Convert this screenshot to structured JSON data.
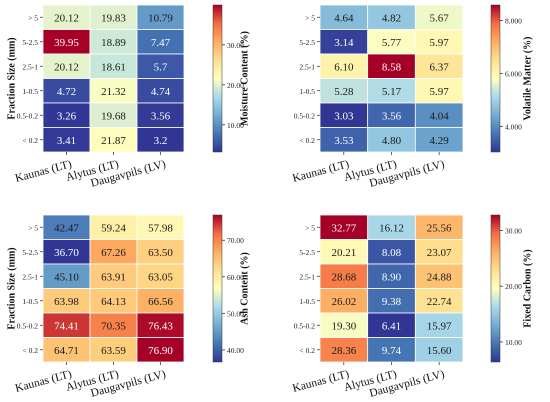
{
  "chart_data": [
    {
      "type": "heatmap",
      "title": "",
      "ylabel": "Fraction Size (mm)",
      "colorbar_label": "Moisture Content (%)",
      "colormap": "RdYlBu_r",
      "columns": [
        "Kaunas (LT)",
        "Alytus (LT)",
        "Daugavpils (LV)"
      ],
      "rows": [
        "> 5",
        "5-2.5",
        "2.5-1",
        "1-0.5",
        "0.5-0.2",
        "< 0.2"
      ],
      "values": [
        [
          20.12,
          19.83,
          10.79
        ],
        [
          39.95,
          18.89,
          7.47
        ],
        [
          20.12,
          18.61,
          5.7
        ],
        [
          4.72,
          21.32,
          4.74
        ],
        [
          3.26,
          19.68,
          3.56
        ],
        [
          3.41,
          21.87,
          3.2
        ]
      ],
      "cell_labels": [
        [
          "20.12",
          "19.83",
          "10.79"
        ],
        [
          "39.95",
          "18.89",
          "7.47"
        ],
        [
          "20.12",
          "18.61",
          "5.7"
        ],
        [
          "4.72",
          "21.32",
          "4.74"
        ],
        [
          "3.26",
          "19.68",
          "3.56"
        ],
        [
          "3.41",
          "21.87",
          "3.2"
        ]
      ],
      "vmin": 3.2,
      "vmax": 39.95,
      "colorbar_ticks": [
        "10.00",
        "20.00",
        "30.00"
      ]
    },
    {
      "type": "heatmap",
      "title": "",
      "ylabel": "",
      "colorbar_label": "Volatile Matter (%)",
      "colormap": "RdYlBu_r",
      "columns": [
        "Kaunas (LT)",
        "Alytus (LT)",
        "Daugavpils (LV)"
      ],
      "rows": [
        "> 5",
        "5-2.5",
        "2.5-1",
        "1-0.5",
        "0.5-0.2",
        "< 0.2"
      ],
      "values": [
        [
          4.64,
          4.82,
          5.67
        ],
        [
          3.14,
          5.77,
          5.97
        ],
        [
          6.1,
          8.58,
          6.37
        ],
        [
          5.28,
          5.17,
          5.97
        ],
        [
          3.03,
          3.56,
          4.04
        ],
        [
          3.53,
          4.8,
          4.29
        ]
      ],
      "cell_labels": [
        [
          "4.64",
          "4.82",
          "5.67"
        ],
        [
          "3.14",
          "5.77",
          "5.97"
        ],
        [
          "6.10",
          "8.58",
          "6.37"
        ],
        [
          "5.28",
          "5.17",
          "5.97"
        ],
        [
          "3.03",
          "3.56",
          "4.04"
        ],
        [
          "3.53",
          "4.80",
          "4.29"
        ]
      ],
      "vmin": 3.03,
      "vmax": 8.58,
      "colorbar_ticks": [
        "4.000",
        "6.000",
        "8.000"
      ]
    },
    {
      "type": "heatmap",
      "title": "",
      "ylabel": "Fraction Size (mm)",
      "colorbar_label": "Ash Content (%)",
      "colormap": "RdYlBu_r",
      "columns": [
        "Kaunas (LT)",
        "Alytus (LT)",
        "Daugavpils (LV)"
      ],
      "rows": [
        "> 5",
        "5-2.5",
        "2.5-1",
        "1-0.5",
        "0.5-0.2",
        "< 0.2"
      ],
      "values": [
        [
          42.47,
          59.24,
          57.98
        ],
        [
          36.7,
          67.26,
          63.5
        ],
        [
          45.1,
          63.91,
          63.05
        ],
        [
          63.98,
          64.13,
          66.56
        ],
        [
          74.41,
          70.35,
          76.43
        ],
        [
          64.71,
          63.59,
          76.9
        ]
      ],
      "cell_labels": [
        [
          "42.47",
          "59.24",
          "57.98"
        ],
        [
          "36.70",
          "67.26",
          "63.50"
        ],
        [
          "45.10",
          "63.91",
          "63.05"
        ],
        [
          "63.98",
          "64.13",
          "66.56"
        ],
        [
          "74.41",
          "70.35",
          "76.43"
        ],
        [
          "64.71",
          "63.59",
          "76.90"
        ]
      ],
      "vmin": 36.7,
      "vmax": 76.9,
      "colorbar_ticks": [
        "40.00",
        "50.00",
        "60.00",
        "70.00"
      ]
    },
    {
      "type": "heatmap",
      "title": "",
      "ylabel": "",
      "colorbar_label": "Fixed Carbon (%)",
      "colormap": "RdYlBu_r",
      "columns": [
        "Kaunas (LT)",
        "Alytus (LT)",
        "Daugavpils (LV)"
      ],
      "rows": [
        "> 5",
        "5-2.5",
        "2.5-1",
        "1-0.5",
        "0.5-0.2",
        "< 0.2"
      ],
      "values": [
        [
          32.77,
          16.12,
          25.56
        ],
        [
          20.21,
          8.08,
          23.07
        ],
        [
          28.68,
          8.9,
          24.88
        ],
        [
          26.02,
          9.38,
          22.74
        ],
        [
          19.3,
          6.41,
          15.97
        ],
        [
          28.36,
          9.74,
          15.6
        ]
      ],
      "cell_labels": [
        [
          "32.77",
          "16.12",
          "25.56"
        ],
        [
          "20.21",
          "8.08",
          "23.07"
        ],
        [
          "28.68",
          "8.90",
          "24.88"
        ],
        [
          "26.02",
          "9.38",
          "22.74"
        ],
        [
          "19.30",
          "6.41",
          "15.97"
        ],
        [
          "28.36",
          "9.74",
          "15.60"
        ]
      ],
      "vmin": 6.41,
      "vmax": 32.77,
      "colorbar_ticks": [
        "10.00",
        "20.00",
        "30.00"
      ]
    }
  ]
}
